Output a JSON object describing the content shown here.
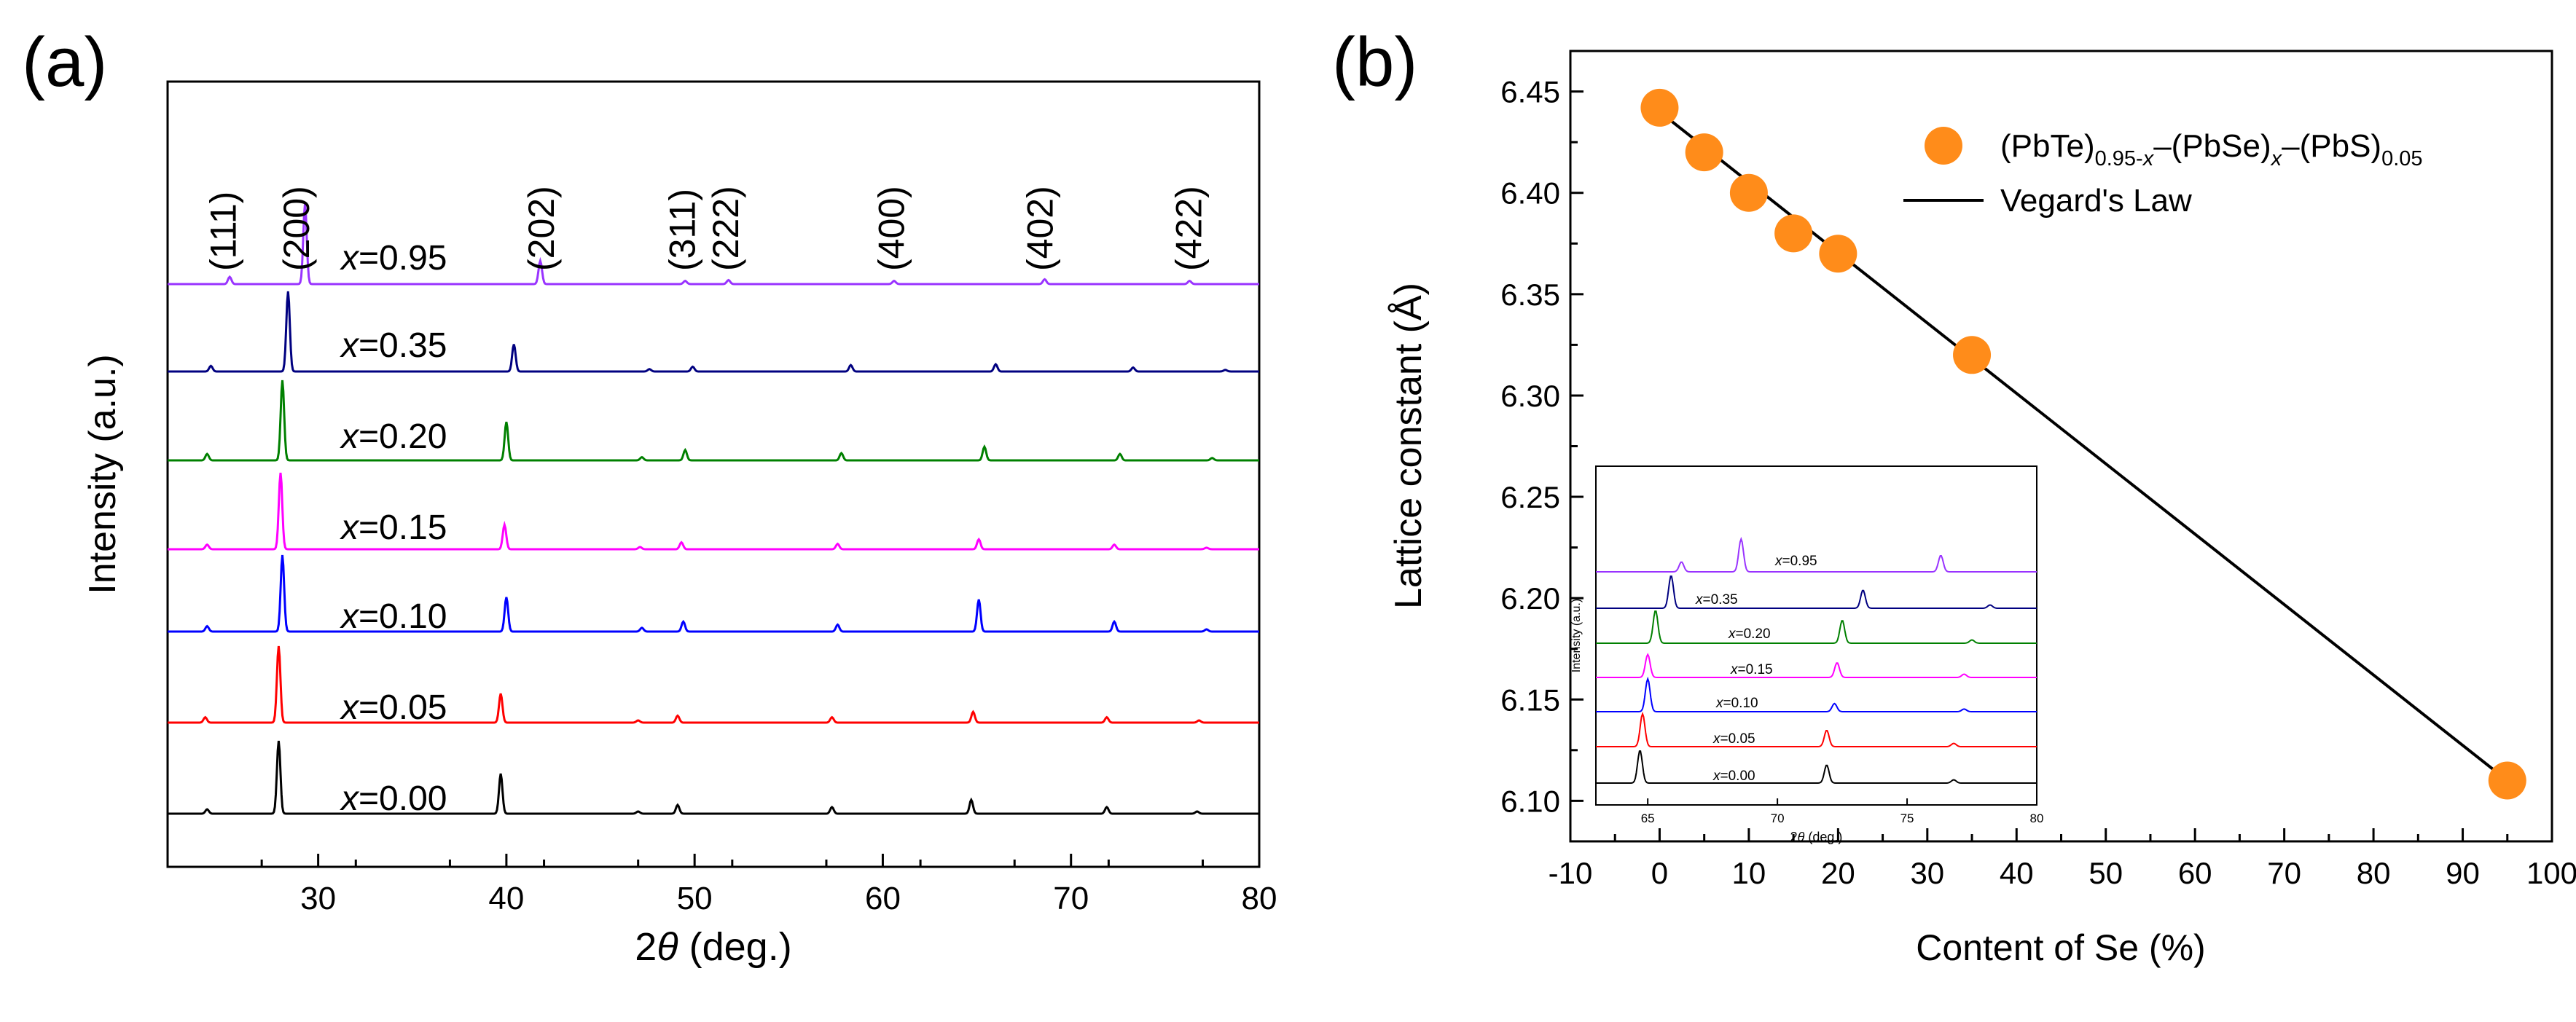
{
  "panels": {
    "a": {
      "label": "(a)"
    },
    "b": {
      "label": "(b)"
    }
  },
  "chart_data": [
    {
      "id": "a",
      "type": "line",
      "xlabel_prefix": "2",
      "xlabel_symbol": "θ",
      "xlabel_suffix": " (deg.)",
      "ylabel": "Intensity (a.u.)",
      "xlim": [
        22,
        80
      ],
      "xticks": [
        30,
        40,
        50,
        60,
        70,
        80
      ],
      "peaks_ref": [
        24.1,
        27.9,
        39.7,
        47.0,
        49.3,
        57.4,
        64.8,
        72.3
      ],
      "peak_labels": [
        {
          "text": "(111)",
          "x": 25.0
        },
        {
          "text": "(200)",
          "x": 28.9
        },
        {
          "text": "(202)",
          "x": 41.9
        },
        {
          "text": "(311)",
          "x": 49.4
        },
        {
          "text": "(222)",
          "x": 51.7
        },
        {
          "text": "(400)",
          "x": 60.5
        },
        {
          "text": "(402)",
          "x": 68.4
        },
        {
          "text": "(422)",
          "x": 76.3
        }
      ],
      "series": [
        {
          "name": "x=0.00",
          "var": "x",
          "val": "=0.00",
          "color": "#000000",
          "shift": 0.0,
          "peaks": [
            [
              24.1,
              0.06
            ],
            [
              27.9,
              1.0
            ],
            [
              39.7,
              0.55
            ],
            [
              47.0,
              0.03
            ],
            [
              49.1,
              0.12
            ],
            [
              57.3,
              0.09
            ],
            [
              64.7,
              0.19
            ],
            [
              71.9,
              0.09
            ],
            [
              76.7,
              0.03
            ]
          ]
        },
        {
          "name": "x=0.05",
          "var": "x",
          "val": "=0.05",
          "color": "#ff0000",
          "shift": 0.0,
          "peaks": [
            [
              24.0,
              0.07
            ],
            [
              27.9,
              1.0
            ],
            [
              39.7,
              0.38
            ],
            [
              47.0,
              0.03
            ],
            [
              49.1,
              0.09
            ],
            [
              57.3,
              0.07
            ],
            [
              64.8,
              0.14
            ],
            [
              71.9,
              0.07
            ],
            [
              76.8,
              0.03
            ]
          ]
        },
        {
          "name": "x=0.10",
          "var": "x",
          "val": "=0.10",
          "color": "#0000ff",
          "shift": 0.0,
          "peaks": [
            [
              24.1,
              0.07
            ],
            [
              28.1,
              1.0
            ],
            [
              40.0,
              0.45
            ],
            [
              47.2,
              0.05
            ],
            [
              49.4,
              0.13
            ],
            [
              57.6,
              0.09
            ],
            [
              65.1,
              0.42
            ],
            [
              72.3,
              0.13
            ],
            [
              77.2,
              0.03
            ]
          ]
        },
        {
          "name": "x=0.15",
          "var": "x",
          "val": "=0.15",
          "color": "#ff00ff",
          "shift": 0.0,
          "peaks": [
            [
              24.1,
              0.06
            ],
            [
              28.0,
              1.0
            ],
            [
              39.9,
              0.32
            ],
            [
              47.1,
              0.03
            ],
            [
              49.3,
              0.09
            ],
            [
              57.6,
              0.07
            ],
            [
              65.1,
              0.13
            ],
            [
              72.3,
              0.06
            ],
            [
              77.2,
              0.02
            ]
          ]
        },
        {
          "name": "x=0.20",
          "var": "x",
          "val": "=0.20",
          "color": "#008000",
          "shift": 0.0,
          "peaks": [
            [
              24.1,
              0.08
            ],
            [
              28.1,
              1.0
            ],
            [
              40.0,
              0.48
            ],
            [
              47.2,
              0.04
            ],
            [
              49.5,
              0.13
            ],
            [
              57.8,
              0.09
            ],
            [
              65.4,
              0.17
            ],
            [
              72.6,
              0.08
            ],
            [
              77.5,
              0.03
            ]
          ]
        },
        {
          "name": "x=0.35",
          "var": "x",
          "val": "=0.35",
          "color": "#000080",
          "shift": 0.0,
          "peaks": [
            [
              24.3,
              0.07
            ],
            [
              28.4,
              1.0
            ],
            [
              40.4,
              0.34
            ],
            [
              47.6,
              0.03
            ],
            [
              49.9,
              0.06
            ],
            [
              58.3,
              0.08
            ],
            [
              66.0,
              0.09
            ],
            [
              73.3,
              0.05
            ],
            [
              78.2,
              0.02
            ]
          ]
        },
        {
          "name": "x=0.95",
          "var": "x",
          "val": "=0.95",
          "color": "#9933ff",
          "shift": 0.0,
          "peaks": [
            [
              25.3,
              0.09
            ],
            [
              29.3,
              1.0
            ],
            [
              41.8,
              0.29
            ],
            [
              49.5,
              0.04
            ],
            [
              51.8,
              0.05
            ],
            [
              60.6,
              0.04
            ],
            [
              68.6,
              0.06
            ],
            [
              76.3,
              0.04
            ]
          ]
        }
      ]
    },
    {
      "id": "b",
      "type": "scatter",
      "xlabel": "Content of Se (%)",
      "ylabel": "Lattice constant (Å)",
      "xlim": [
        -10,
        100
      ],
      "ylim": [
        6.08,
        6.47
      ],
      "xticks": [
        -10,
        0,
        10,
        20,
        30,
        40,
        50,
        60,
        70,
        80,
        90,
        100
      ],
      "yticks": [
        6.1,
        6.15,
        6.2,
        6.25,
        6.3,
        6.35,
        6.4,
        6.45
      ],
      "points": {
        "x": [
          0,
          5,
          10,
          15,
          20,
          35,
          95
        ],
        "y": [
          6.442,
          6.42,
          6.4,
          6.38,
          6.37,
          6.32,
          6.11
        ],
        "color": "#ff8c1a"
      },
      "fit_line": {
        "x": [
          0,
          95
        ],
        "y": [
          6.44,
          6.11
        ]
      },
      "legend": {
        "placement": "top-right",
        "scatter": {
          "part1": "(PbTe)",
          "sub1": "0.95-",
          "sub1_var": "x",
          "part2": "–(PbSe)",
          "sub2_var": "x",
          "part3": "–(PbS)",
          "sub3": "0.05"
        },
        "line": "Vegard's Law"
      },
      "inset": {
        "xlabel_prefix": "2",
        "xlabel_symbol": "θ",
        "xlabel_suffix": " (deg.)",
        "ylabel": "Intensity (a.u.)",
        "xlim": [
          63,
          80
        ],
        "xticks": [
          65,
          70,
          75,
          80
        ],
        "series": [
          {
            "name": "x=0.00",
            "var": "x",
            "val": "=0.00",
            "color": "#000000",
            "peaks": [
              [
                64.7,
                1.0
              ],
              [
                71.9,
                0.55
              ],
              [
                76.8,
                0.1
              ]
            ]
          },
          {
            "name": "x=0.05",
            "var": "x",
            "val": "=0.05",
            "color": "#ff0000",
            "peaks": [
              [
                64.8,
                1.0
              ],
              [
                71.9,
                0.5
              ],
              [
                76.8,
                0.1
              ]
            ]
          },
          {
            "name": "x=0.10",
            "var": "x",
            "val": "=0.10",
            "color": "#0000ff",
            "peaks": [
              [
                65.0,
                1.0
              ],
              [
                72.2,
                0.25
              ],
              [
                77.2,
                0.08
              ]
            ]
          },
          {
            "name": "x=0.15",
            "var": "x",
            "val": "=0.15",
            "color": "#ff00ff",
            "peaks": [
              [
                65.0,
                0.7
              ],
              [
                72.3,
                0.45
              ],
              [
                77.2,
                0.1
              ]
            ]
          },
          {
            "name": "x=0.20",
            "var": "x",
            "val": "=0.20",
            "color": "#008000",
            "peaks": [
              [
                65.3,
                1.0
              ],
              [
                72.5,
                0.7
              ],
              [
                77.5,
                0.1
              ]
            ]
          },
          {
            "name": "x=0.35",
            "var": "x",
            "val": "=0.35",
            "color": "#000080",
            "peaks": [
              [
                65.9,
                1.0
              ],
              [
                73.3,
                0.55
              ],
              [
                78.2,
                0.1
              ]
            ]
          },
          {
            "name": "x=0.95",
            "var": "x",
            "val": "=0.95",
            "color": "#9933ff",
            "peaks": [
              [
                66.3,
                0.3
              ],
              [
                68.6,
                1.0
              ],
              [
                76.3,
                0.5
              ]
            ]
          }
        ]
      }
    }
  ]
}
